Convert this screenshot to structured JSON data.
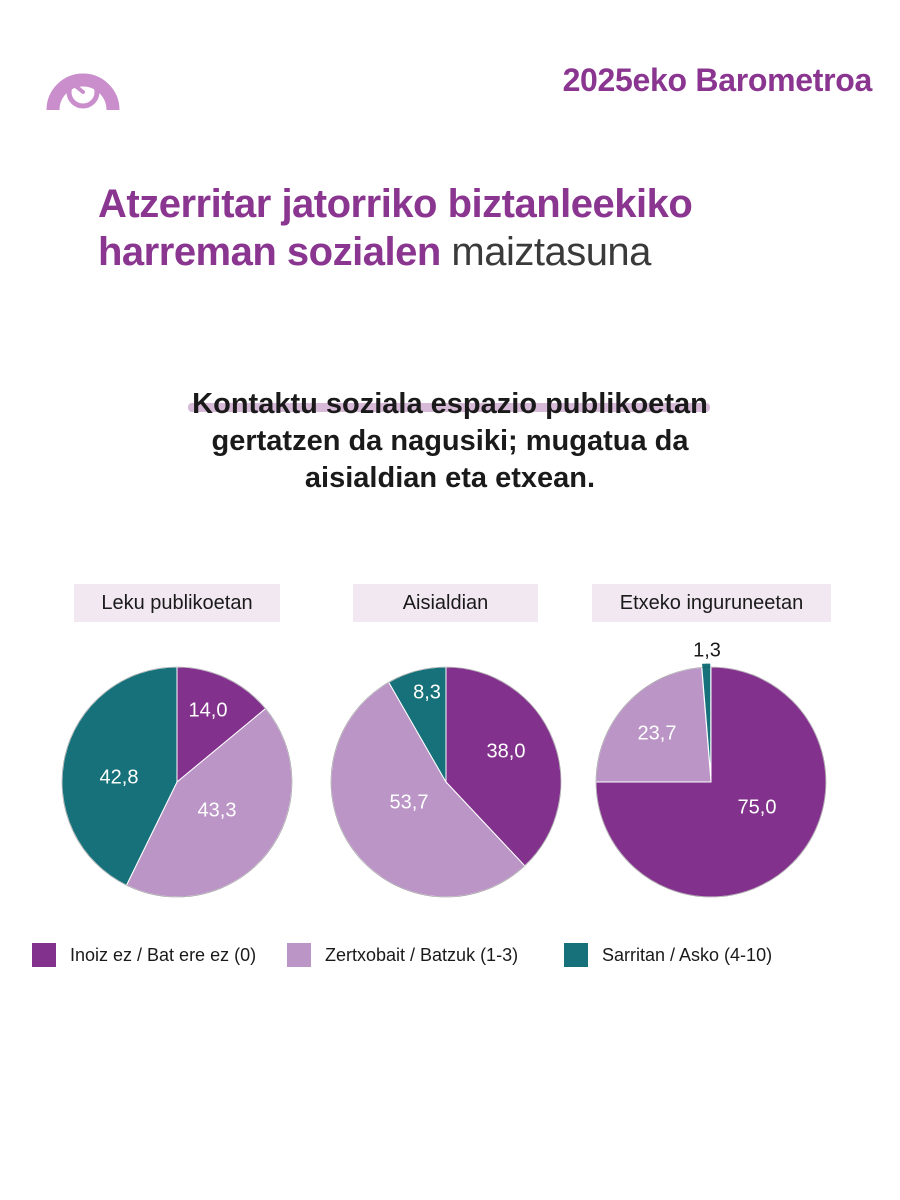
{
  "header": {
    "brand": "2025eko Barometroa",
    "logo_icon": "gauge-icon"
  },
  "title": {
    "strong": "Atzerritar jatorriko biztanleekiko harreman sozialen",
    "light": "maiztasuna"
  },
  "subtitle": {
    "line1": "Kontaktu soziala espazio publikoetan",
    "line2": "gertatzen da nagusiki; mugatua da",
    "line3": "aisialdian eta etxean."
  },
  "colors": {
    "accent": "#8a3590",
    "inoiz": "#82318c",
    "zertxobait": "#ba95c6",
    "sarritan": "#16717a",
    "label_bg": "#f1e8f1"
  },
  "chart_data": [
    {
      "type": "pie",
      "title": "Leku publikoetan",
      "categories": [
        "Inoiz ez / Bat ere ez (0)",
        "Zertxobait / Batzuk (1-3)",
        "Sarritan / Asko (4-10)"
      ],
      "values": [
        14.0,
        43.3,
        42.8
      ],
      "labels": [
        "14,0",
        "43,3",
        "42,8"
      ]
    },
    {
      "type": "pie",
      "title": "Aisialdian",
      "categories": [
        "Inoiz ez / Bat ere ez (0)",
        "Zertxobait / Batzuk (1-3)",
        "Sarritan / Asko (4-10)"
      ],
      "values": [
        38.0,
        53.7,
        8.3
      ],
      "labels": [
        "38,0",
        "53,7",
        "8,3"
      ]
    },
    {
      "type": "pie",
      "title": "Etxeko inguruneetan",
      "categories": [
        "Inoiz ez / Bat ere ez (0)",
        "Zertxobait / Batzuk (1-3)",
        "Sarritan / Asko (4-10)"
      ],
      "values": [
        75.0,
        23.7,
        1.3
      ],
      "labels": [
        "75,0",
        "23,7",
        "1,3"
      ]
    }
  ],
  "legend": {
    "items": [
      {
        "label": "Inoiz ez / Bat ere ez (0)",
        "color": "#82318c"
      },
      {
        "label": "Zertxobait / Batzuk (1-3)",
        "color": "#ba95c6"
      },
      {
        "label": "Sarritan / Asko (4-10)",
        "color": "#16717a"
      }
    ]
  }
}
